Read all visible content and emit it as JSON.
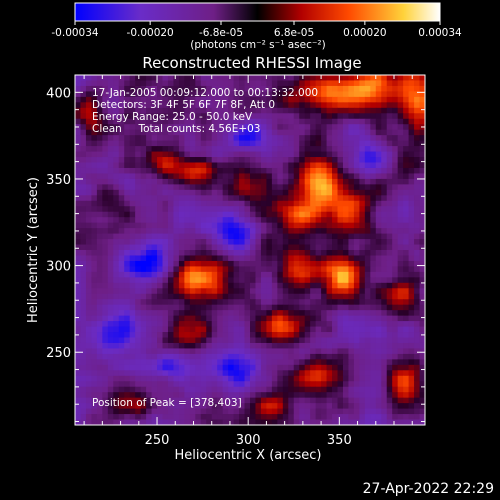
{
  "colorbar": {
    "ticks": [
      "-0.00034",
      "-0.00020",
      "-6.8e-05",
      "6.8e-05",
      "0.00020",
      "0.00034"
    ],
    "tick_values": [
      -0.00034,
      -0.0002,
      -6.8e-05,
      6.8e-05,
      0.0002,
      0.00034
    ],
    "range": [
      -0.00034,
      0.00034
    ],
    "units": "(photons cm⁻² s⁻¹ asec⁻²)",
    "colors": [
      "#0000ff",
      "#6a2cc8",
      "#6e1f86",
      "#000000",
      "#b20000",
      "#ff4a00",
      "#ffd23a",
      "#ffffff"
    ]
  },
  "chart_data": {
    "type": "heatmap",
    "title": "Reconstructed RHESSI Image",
    "xlabel": "Heliocentric X (arcsec)",
    "ylabel": "Heliocentric Y (arcsec)",
    "xlim": [
      205,
      397
    ],
    "ylim": [
      208,
      410
    ],
    "x_ticks": [
      250,
      300,
      350
    ],
    "y_ticks": [
      250,
      300,
      350,
      400
    ],
    "peak": [
      378,
      403
    ],
    "blobs": [
      {
        "x": 360,
        "y": 403,
        "v": 1.0,
        "sx": 14,
        "sy": 9
      },
      {
        "x": 392,
        "y": 398,
        "v": 0.85,
        "sx": 8,
        "sy": 14
      },
      {
        "x": 332,
        "y": 402,
        "v": 0.55,
        "sx": 12,
        "sy": 6
      },
      {
        "x": 272,
        "y": 355,
        "v": 0.75,
        "sx": 10,
        "sy": 6
      },
      {
        "x": 255,
        "y": 360,
        "v": 0.55,
        "sx": 8,
        "sy": 6
      },
      {
        "x": 338,
        "y": 348,
        "v": 0.85,
        "sx": 8,
        "sy": 12
      },
      {
        "x": 328,
        "y": 330,
        "v": 0.55,
        "sx": 14,
        "sy": 6
      },
      {
        "x": 356,
        "y": 332,
        "v": 0.75,
        "sx": 8,
        "sy": 14
      },
      {
        "x": 308,
        "y": 345,
        "v": 0.5,
        "sx": 8,
        "sy": 12
      },
      {
        "x": 215,
        "y": 385,
        "v": 0.5,
        "sx": 7,
        "sy": 12
      },
      {
        "x": 225,
        "y": 335,
        "v": 0.45,
        "sx": 9,
        "sy": 7
      },
      {
        "x": 272,
        "y": 292,
        "v": 0.75,
        "sx": 11,
        "sy": 8
      },
      {
        "x": 330,
        "y": 298,
        "v": 0.55,
        "sx": 14,
        "sy": 7
      },
      {
        "x": 353,
        "y": 290,
        "v": 0.9,
        "sx": 8,
        "sy": 9
      },
      {
        "x": 318,
        "y": 265,
        "v": 0.75,
        "sx": 12,
        "sy": 8
      },
      {
        "x": 268,
        "y": 262,
        "v": 0.55,
        "sx": 10,
        "sy": 7
      },
      {
        "x": 384,
        "y": 282,
        "v": 0.45,
        "sx": 8,
        "sy": 12
      },
      {
        "x": 340,
        "y": 238,
        "v": 0.7,
        "sx": 10,
        "sy": 8
      },
      {
        "x": 312,
        "y": 218,
        "v": 0.65,
        "sx": 12,
        "sy": 7
      },
      {
        "x": 385,
        "y": 232,
        "v": 0.55,
        "sx": 8,
        "sy": 12
      },
      {
        "x": 232,
        "y": 220,
        "v": 0.45,
        "sx": 10,
        "sy": 6
      },
      {
        "x": 243,
        "y": 300,
        "v": -0.75,
        "sx": 10,
        "sy": 8
      },
      {
        "x": 255,
        "y": 243,
        "v": -0.65,
        "sx": 10,
        "sy": 8
      },
      {
        "x": 300,
        "y": 375,
        "v": -0.65,
        "sx": 10,
        "sy": 7
      },
      {
        "x": 366,
        "y": 360,
        "v": -0.55,
        "sx": 8,
        "sy": 8
      },
      {
        "x": 228,
        "y": 262,
        "v": -0.65,
        "sx": 8,
        "sy": 10
      },
      {
        "x": 290,
        "y": 318,
        "v": -0.55,
        "sx": 10,
        "sy": 7
      },
      {
        "x": 372,
        "y": 255,
        "v": -0.45,
        "sx": 8,
        "sy": 8
      },
      {
        "x": 290,
        "y": 240,
        "v": -0.45,
        "sx": 10,
        "sy": 7
      }
    ],
    "annotations": [
      "17-Jan-2005 00:09:12.000 to 00:13:32.000",
      "Detectors: 3F 4F 5F 6F 7F 8F, Att 0",
      "Energy Range: 25.0 - 50.0 keV",
      "Clean     Total counts: 4.56E+03"
    ],
    "peak_label": "Position of Peak = [378,403]"
  },
  "footer": "27-Apr-2022 22:29"
}
